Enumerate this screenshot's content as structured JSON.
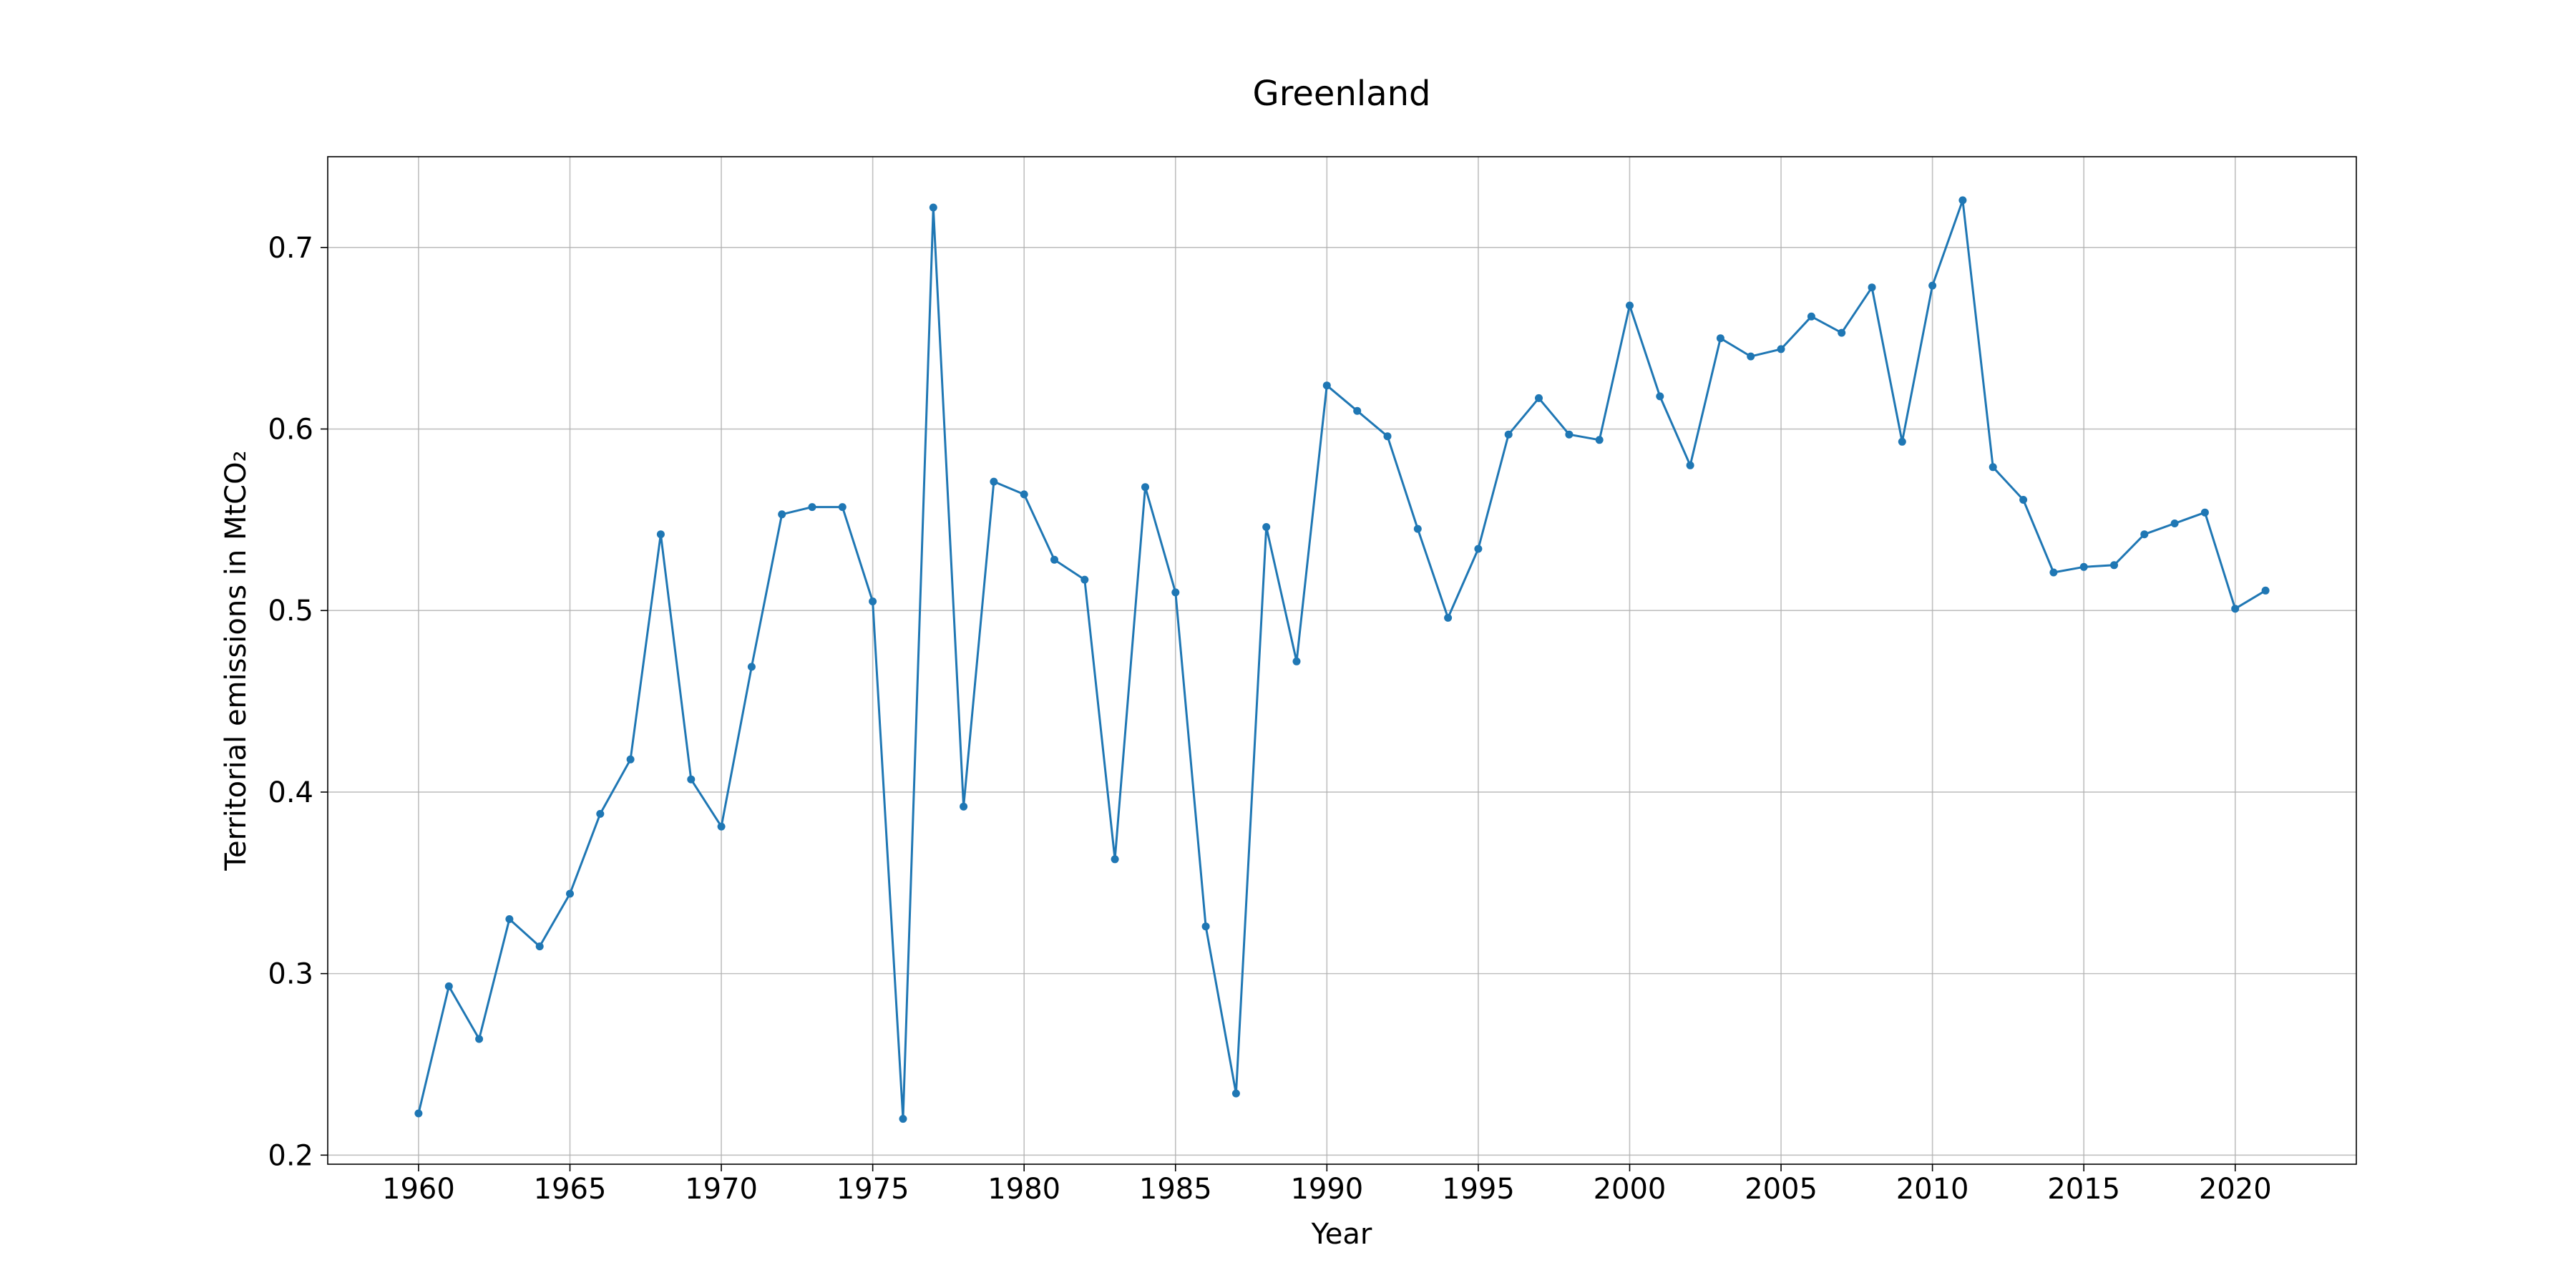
{
  "chart_data": {
    "type": "line",
    "title": "Greenland",
    "xlabel": "Year",
    "ylabel": "Territorial emissions in MtCO₂",
    "xlim": [
      1957,
      2024
    ],
    "ylim": [
      0.195,
      0.75
    ],
    "xticks": [
      1960,
      1965,
      1970,
      1975,
      1980,
      1985,
      1990,
      1995,
      2000,
      2005,
      2010,
      2015,
      2020
    ],
    "yticks": [
      0.2,
      0.3,
      0.4,
      0.5,
      0.6,
      0.7
    ],
    "grid": true,
    "legend": "none",
    "line_color": "#1f77b4",
    "series": [
      {
        "x": [
          1960,
          1961,
          1962,
          1963,
          1964,
          1965,
          1966,
          1967,
          1968,
          1969,
          1970,
          1971,
          1972,
          1973,
          1974,
          1975,
          1976,
          1977,
          1978,
          1979,
          1980,
          1981,
          1982,
          1983,
          1984,
          1985,
          1986,
          1987,
          1988,
          1989,
          1990,
          1991,
          1992,
          1993,
          1994,
          1995,
          1996,
          1997,
          1998,
          1999,
          2000,
          2001,
          2002,
          2003,
          2004,
          2005,
          2006,
          2007,
          2008,
          2009,
          2010,
          2011,
          2012,
          2013,
          2014,
          2015,
          2016,
          2017,
          2018,
          2019,
          2020,
          2021
        ],
        "values": [
          0.223,
          0.293,
          0.264,
          0.33,
          0.315,
          0.344,
          0.388,
          0.418,
          0.542,
          0.407,
          0.381,
          0.469,
          0.553,
          0.557,
          0.557,
          0.505,
          0.22,
          0.722,
          0.392,
          0.571,
          0.564,
          0.528,
          0.517,
          0.363,
          0.568,
          0.51,
          0.326,
          0.234,
          0.546,
          0.472,
          0.624,
          0.61,
          0.596,
          0.545,
          0.496,
          0.534,
          0.597,
          0.617,
          0.597,
          0.594,
          0.668,
          0.618,
          0.58,
          0.65,
          0.64,
          0.644,
          0.662,
          0.653,
          0.678,
          0.593,
          0.679,
          0.726,
          0.579,
          0.561,
          0.521,
          0.524,
          0.525,
          0.542,
          0.548,
          0.554,
          0.501,
          0.511
        ]
      }
    ]
  }
}
